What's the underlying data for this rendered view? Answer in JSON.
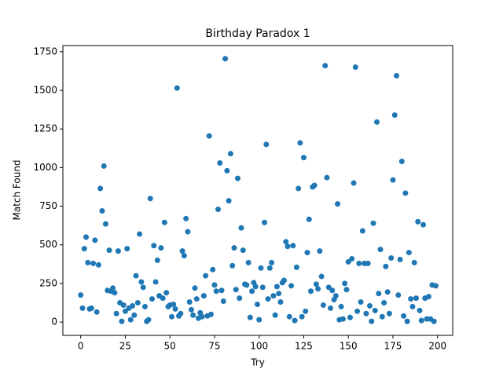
{
  "chart_data": {
    "type": "scatter",
    "title": "Birthday Paradox 1",
    "x_label": "Try",
    "y_label": "Match Found",
    "xlim": [
      -10,
      208.5
    ],
    "ylim": [
      -86,
      1790
    ],
    "xticks": [
      0,
      25,
      50,
      75,
      100,
      125,
      150,
      175,
      200
    ],
    "yticks": [
      0,
      250,
      500,
      750,
      1000,
      1250,
      1500,
      1750
    ],
    "series": [
      {
        "color": "#1f77b4",
        "x": [
          0,
          1,
          2,
          3,
          4,
          5,
          6,
          7,
          8,
          9,
          10,
          11,
          12,
          13,
          14,
          15,
          16,
          17,
          18,
          19,
          20,
          21,
          22,
          23,
          24,
          25,
          26,
          27,
          28,
          29,
          30,
          31,
          32,
          33,
          34,
          35,
          36,
          37,
          38,
          39,
          40,
          41,
          42,
          43,
          44,
          45,
          46,
          47,
          48,
          49,
          50,
          51,
          52,
          53,
          54,
          55,
          56,
          57,
          58,
          59,
          60,
          61,
          62,
          63,
          64,
          65,
          66,
          67,
          68,
          69,
          70,
          71,
          72,
          73,
          74,
          75,
          76,
          77,
          78,
          79,
          80,
          81,
          82,
          83,
          84,
          85,
          86,
          87,
          88,
          89,
          90,
          91,
          92,
          93,
          94,
          95,
          96,
          97,
          98,
          99,
          100,
          101,
          102,
          103,
          104,
          105,
          106,
          107,
          108,
          109,
          110,
          111,
          112,
          113,
          114,
          115,
          116,
          117,
          118,
          119,
          120,
          121,
          122,
          123,
          124,
          125,
          126,
          127,
          128,
          129,
          130,
          131,
          132,
          133,
          134,
          135,
          136,
          137,
          138,
          139,
          140,
          141,
          142,
          143,
          144,
          145,
          146,
          147,
          148,
          149,
          150,
          151,
          152,
          153,
          154,
          155,
          156,
          157,
          158,
          159,
          160,
          161,
          162,
          163,
          164,
          165,
          166,
          167,
          168,
          169,
          170,
          171,
          172,
          173,
          174,
          175,
          176,
          177,
          178,
          179,
          180,
          181,
          182,
          183,
          184,
          185,
          186,
          187,
          188,
          189,
          190,
          191,
          192,
          193,
          194,
          195,
          196,
          197,
          198,
          199
        ],
        "values": [
          175,
          90,
          475,
          550,
          385,
          85,
          90,
          380,
          530,
          65,
          370,
          865,
          720,
          1010,
          635,
          205,
          465,
          200,
          220,
          190,
          55,
          460,
          125,
          5,
          110,
          70,
          475,
          90,
          15,
          105,
          45,
          300,
          125,
          570,
          260,
          225,
          100,
          5,
          15,
          800,
          150,
          495,
          260,
          400,
          170,
          480,
          155,
          645,
          190,
          100,
          110,
          35,
          115,
          85,
          1515,
          40,
          55,
          460,
          430,
          670,
          585,
          130,
          80,
          45,
          220,
          150,
          25,
          60,
          35,
          170,
          300,
          40,
          1205,
          50,
          340,
          240,
          200,
          730,
          1030,
          205,
          135,
          1705,
          980,
          785,
          1090,
          365,
          480,
          210,
          930,
          155,
          610,
          465,
          245,
          240,
          385,
          30,
          200,
          255,
          230,
          115,
          15,
          350,
          225,
          645,
          1150,
          150,
          350,
          385,
          170,
          45,
          230,
          185,
          130,
          255,
          270,
          520,
          490,
          35,
          235,
          495,
          10,
          355,
          865,
          1160,
          35,
          1065,
          70,
          450,
          665,
          200,
          875,
          885,
          245,
          215,
          460,
          295,
          110,
          1660,
          935,
          225,
          90,
          205,
          145,
          170,
          765,
          15,
          100,
          20,
          250,
          210,
          390,
          30,
          410,
          900,
          1650,
          70,
          380,
          130,
          590,
          380,
          55,
          380,
          105,
          5,
          640,
          75,
          1295,
          185,
          470,
          35,
          125,
          360,
          195,
          55,
          415,
          920,
          1340,
          1595,
          175,
          405,
          1040,
          40,
          835,
          5,
          450,
          150,
          100,
          385,
          155,
          650,
          75,
          10,
          630,
          155,
          20,
          165,
          20,
          240,
          5,
          235
        ]
      }
    ]
  }
}
